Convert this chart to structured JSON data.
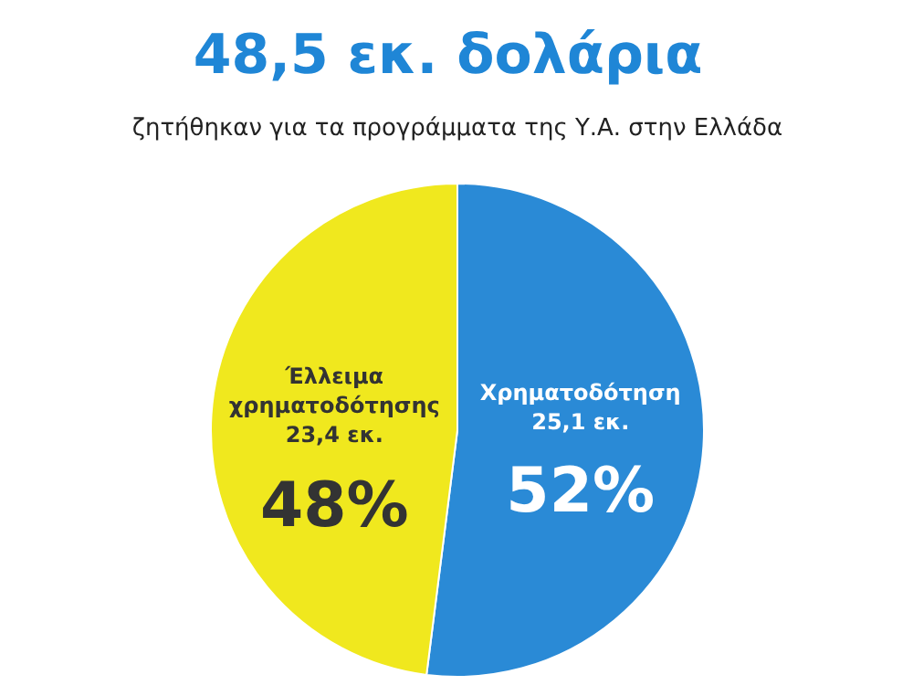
{
  "chart_data": {
    "type": "pie",
    "title": "48,5  εκ. δολάρια",
    "subtitle": "ζητήθηκαν για τα προγράμματα της Υ.Α. στην Ελλάδα",
    "categories": [
      "Χρηματοδότηση",
      "Έλλειμα χρηματοδότησης"
    ],
    "values": [
      52,
      48
    ],
    "colors": [
      "#2a8ad6",
      "#f0e81e"
    ],
    "value_labels": [
      "52%",
      "48%"
    ],
    "annotations": [
      "25,1 εκ.",
      "23,4 εκ."
    ]
  }
}
